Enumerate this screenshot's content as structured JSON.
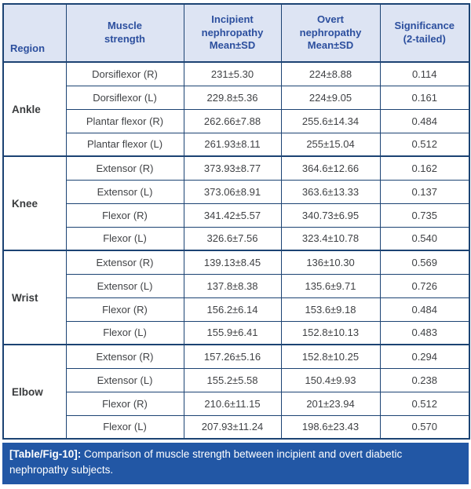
{
  "table": {
    "headers": {
      "region": "Region",
      "muscle": "Muscle\nstrength",
      "incipient": "Incipient\nnephropathy\nMean±SD",
      "overt": "Overt\nnephropathy\nMean±SD",
      "significance": "Significance\n(2-tailed)"
    },
    "groups": [
      {
        "region": "Ankle",
        "rows": [
          {
            "muscle": "Dorsiflexor (R)",
            "incipient": "231±5.30",
            "overt": "224±8.88",
            "sig": "0.114"
          },
          {
            "muscle": "Dorsiflexor (L)",
            "incipient": "229.8±5.36",
            "overt": "224±9.05",
            "sig": "0.161"
          },
          {
            "muscle": "Plantar flexor (R)",
            "incipient": "262.66±7.88",
            "overt": "255.6±14.34",
            "sig": "0.484"
          },
          {
            "muscle": "Plantar flexor (L)",
            "incipient": "261.93±8.11",
            "overt": "255±15.04",
            "sig": "0.512"
          }
        ]
      },
      {
        "region": "Knee",
        "rows": [
          {
            "muscle": "Extensor (R)",
            "incipient": "373.93±8.77",
            "overt": "364.6±12.66",
            "sig": "0.162"
          },
          {
            "muscle": "Extensor (L)",
            "incipient": "373.06±8.91",
            "overt": "363.6±13.33",
            "sig": "0.137"
          },
          {
            "muscle": "Flexor (R)",
            "incipient": "341.42±5.57",
            "overt": "340.73±6.95",
            "sig": "0.735"
          },
          {
            "muscle": "Flexor (L)",
            "incipient": "326.6±7.56",
            "overt": "323.4±10.78",
            "sig": "0.540"
          }
        ]
      },
      {
        "region": "Wrist",
        "rows": [
          {
            "muscle": "Extensor (R)",
            "incipient": "139.13±8.45",
            "overt": "136±10.30",
            "sig": "0.569"
          },
          {
            "muscle": "Extensor (L)",
            "incipient": "137.8±8.38",
            "overt": "135.6±9.71",
            "sig": "0.726"
          },
          {
            "muscle": "Flexor (R)",
            "incipient": "156.2±6.14",
            "overt": "153.6±9.18",
            "sig": "0.484"
          },
          {
            "muscle": "Flexor (L)",
            "incipient": "155.9±6.41",
            "overt": "152.8±10.13",
            "sig": "0.483"
          }
        ]
      },
      {
        "region": "Elbow",
        "rows": [
          {
            "muscle": "Extensor (R)",
            "incipient": "157.26±5.16",
            "overt": "152.8±10.25",
            "sig": "0.294"
          },
          {
            "muscle": "Extensor (L)",
            "incipient": "155.2±5.58",
            "overt": "150.4±9.93",
            "sig": "0.238"
          },
          {
            "muscle": "Flexor (R)",
            "incipient": "210.6±11.15",
            "overt": "201±23.94",
            "sig": "0.512"
          },
          {
            "muscle": "Flexor (L)",
            "incipient": "207.93±11.24",
            "overt": "198.6±23.43",
            "sig": "0.570"
          }
        ]
      }
    ]
  },
  "caption": {
    "label": "[Table/Fig-10]:",
    "text": " Comparison of muscle strength between incipient and overt diabetic nephropathy subjects."
  },
  "colors": {
    "border": "#1c4373",
    "header_bg": "#dde4f3",
    "header_text": "#2c4f9e",
    "body_text": "#404245",
    "caption_bg": "#2257a5",
    "caption_text": "#ffffff"
  }
}
